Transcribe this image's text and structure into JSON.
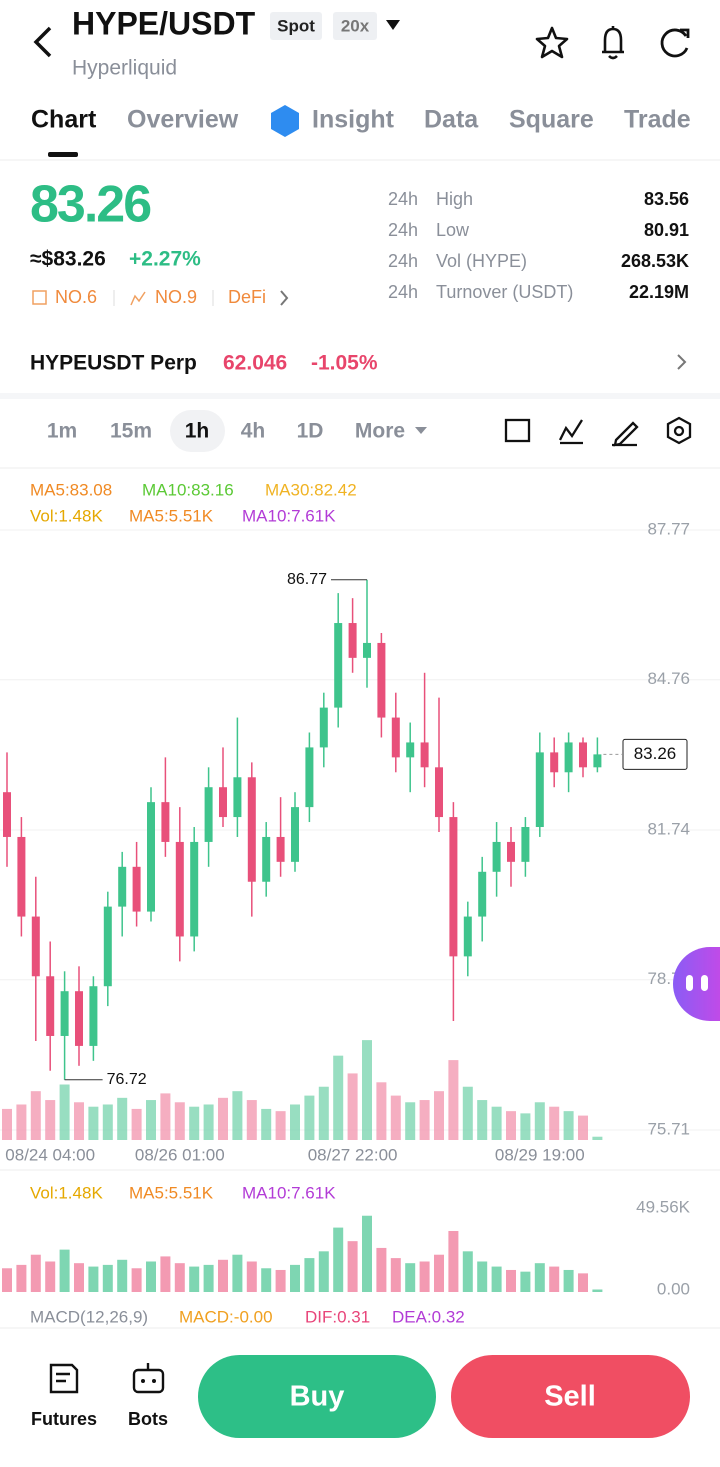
{
  "header": {
    "title": "HYPE/USDT",
    "badge_spot": "Spot",
    "badge_leverage": "20x",
    "subtitle": "Hyperliquid"
  },
  "tabs": [
    "Chart",
    "Overview",
    "Insight",
    "Data",
    "Square",
    "Trade"
  ],
  "price": {
    "last": "83.26",
    "usd": "≈$83.26",
    "change": "+2.27%",
    "rank_market_cap": "NO.6",
    "rank_volume": "NO.9",
    "sector": "DeFi"
  },
  "stats": [
    {
      "period": "24h",
      "label": "High",
      "value": "83.56"
    },
    {
      "period": "24h",
      "label": "Low",
      "value": "80.91"
    },
    {
      "period": "24h",
      "label": "Vol (HYPE)",
      "value": "268.53K"
    },
    {
      "period": "24h",
      "label": "Turnover (USDT)",
      "value": "22.19M"
    }
  ],
  "perp": {
    "name": "HYPEUSDT Perp",
    "price": "62.046",
    "change": "-1.05%"
  },
  "intervals": [
    "1m",
    "15m",
    "1h",
    "4h",
    "1D",
    "More"
  ],
  "indicators": {
    "ma5": "MA5:83.08",
    "ma10": "MA10:83.16",
    "ma30": "MA30:82.42",
    "vol": "Vol:1.48K",
    "vol_ma5": "MA5:5.51K",
    "vol_ma10": "MA10:7.61K"
  },
  "volume_legend": {
    "vol": "Vol:1.48K",
    "ma5": "MA5:5.51K",
    "ma10": "MA10:7.61K"
  },
  "macd": {
    "name": "MACD(12,26,9)",
    "macd": "MACD:-0.00",
    "dif": "DIF:0.31",
    "dea": "DEA:0.32"
  },
  "bottom_bar": {
    "futures": "Futures",
    "bots": "Bots",
    "buy": "Buy",
    "sell": "Sell"
  },
  "chart_data": [
    {
      "type": "candlestick",
      "categories": [
        null,
        null,
        null,
        "08/24 04:00",
        null,
        null,
        null,
        null,
        null,
        null,
        null,
        null,
        "08/26 01:00",
        null,
        null,
        null,
        null,
        null,
        null,
        null,
        null,
        null,
        null,
        null,
        "08/27 22:00",
        null,
        null,
        null,
        null,
        null,
        null,
        null,
        null,
        null,
        null,
        null,
        null,
        "08/29 19:00",
        null,
        null,
        null,
        null
      ],
      "open": [
        82.5,
        81.6,
        80.0,
        78.8,
        77.6,
        78.5,
        77.4,
        78.6,
        80.2,
        81.0,
        80.1,
        82.3,
        81.5,
        79.6,
        81.5,
        82.6,
        82.0,
        82.8,
        80.7,
        81.6,
        81.1,
        82.2,
        83.4,
        84.2,
        85.9,
        85.2,
        85.5,
        84.0,
        83.2,
        83.5,
        83.0,
        82.0,
        79.2,
        80.0,
        80.9,
        81.5,
        81.1,
        81.8,
        83.3,
        82.9,
        83.5,
        83.0
      ],
      "high": [
        83.3,
        82.0,
        80.8,
        79.5,
        78.9,
        79.0,
        78.8,
        80.5,
        81.3,
        81.5,
        82.6,
        83.2,
        82.2,
        81.8,
        83.0,
        83.4,
        84.0,
        83.1,
        81.9,
        82.4,
        82.5,
        83.7,
        84.5,
        86.5,
        86.4,
        86.77,
        85.7,
        84.5,
        83.9,
        84.9,
        84.4,
        82.3,
        80.3,
        81.2,
        81.9,
        81.8,
        82.0,
        83.7,
        83.6,
        83.7,
        83.6,
        83.6
      ],
      "low": [
        81.0,
        79.6,
        77.5,
        76.9,
        76.72,
        77.0,
        77.1,
        78.2,
        79.6,
        79.8,
        79.9,
        81.2,
        79.1,
        79.3,
        81.0,
        81.8,
        81.6,
        80.0,
        80.4,
        80.8,
        80.9,
        81.9,
        83.0,
        83.8,
        84.9,
        84.6,
        83.6,
        82.9,
        82.5,
        82.6,
        81.7,
        77.9,
        78.8,
        79.5,
        80.4,
        80.6,
        80.8,
        81.6,
        82.6,
        82.5,
        82.8,
        82.9
      ],
      "close": [
        81.6,
        80.0,
        78.8,
        77.6,
        78.5,
        77.4,
        78.6,
        80.2,
        81.0,
        80.1,
        82.3,
        81.5,
        79.6,
        81.5,
        82.6,
        82.0,
        82.8,
        80.7,
        81.6,
        81.1,
        82.2,
        83.4,
        84.2,
        85.9,
        85.2,
        85.5,
        84.0,
        83.2,
        83.5,
        83.0,
        82.0,
        79.2,
        80.0,
        80.9,
        81.5,
        81.1,
        81.8,
        83.3,
        82.9,
        83.5,
        83.0,
        83.26
      ],
      "ylim": [
        75.71,
        87.77
      ],
      "yticks": [
        87.77,
        84.76,
        81.74,
        78.73,
        75.71
      ],
      "grid": true,
      "up_color": "#3ec48c",
      "down_color": "#e8507a"
    },
    {
      "type": "bar",
      "values": [
        14000,
        16000,
        22000,
        18000,
        25000,
        17000,
        15000,
        16000,
        19000,
        14000,
        18000,
        21000,
        17000,
        15000,
        16000,
        19000,
        22000,
        18000,
        14000,
        13000,
        16000,
        20000,
        24000,
        38000,
        30000,
        45000,
        26000,
        20000,
        17000,
        18000,
        22000,
        36000,
        24000,
        18000,
        15000,
        13000,
        12000,
        17000,
        15000,
        13000,
        11000,
        1480
      ],
      "ylim": [
        0,
        49560
      ],
      "yticks": [
        {
          "value": 49560,
          "label": "49.56K"
        },
        {
          "value": 0,
          "label": "0.00"
        }
      ],
      "up_color": "#7ed6b2",
      "down_color": "#f39ab2"
    }
  ]
}
